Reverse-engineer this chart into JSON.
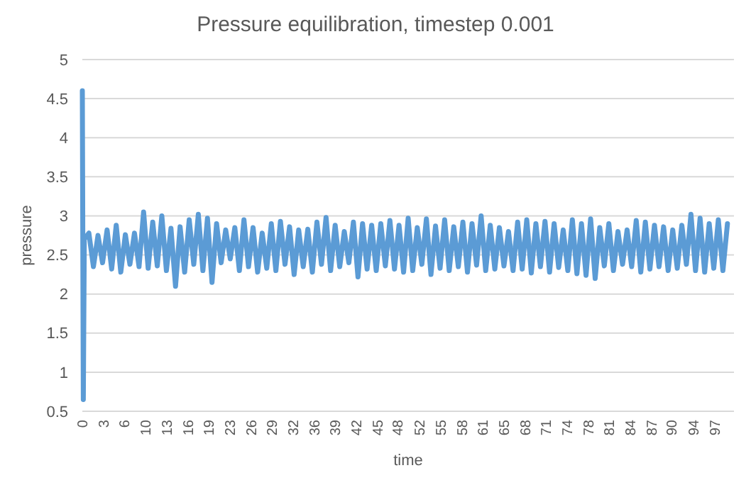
{
  "chart_data": {
    "type": "line",
    "title": "Pressure equilibration, timestep 0.001",
    "xlabel": "time",
    "ylabel": "pressure",
    "x": [
      0,
      0.15,
      0.3,
      1,
      1.7,
      2.4,
      3.1,
      3.8,
      4.5,
      5.2,
      5.9,
      6.6,
      7.3,
      8,
      8.7,
      9.4,
      10.1,
      10.8,
      11.5,
      12.2,
      12.9,
      13.6,
      14.3,
      15,
      15.7,
      16.4,
      17.1,
      17.8,
      18.5,
      19.2,
      19.9,
      20.6,
      21.3,
      22,
      22.7,
      23.4,
      24.1,
      24.8,
      25.5,
      26.2,
      26.9,
      27.6,
      28.3,
      29,
      29.7,
      30.4,
      31.1,
      31.8,
      32.5,
      33.2,
      33.9,
      34.6,
      35.3,
      36,
      36.7,
      37.4,
      38.1,
      38.8,
      39.5,
      40.2,
      40.9,
      41.6,
      42.3,
      43,
      43.7,
      44.4,
      45.1,
      45.8,
      46.5,
      47.2,
      47.9,
      48.6,
      49.3,
      50,
      50.7,
      51.4,
      52.1,
      52.8,
      53.5,
      54.2,
      54.9,
      55.6,
      56.3,
      57,
      57.7,
      58.4,
      59.1,
      59.8,
      60.5,
      61.2,
      61.9,
      62.6,
      63.3,
      64,
      64.7,
      65.4,
      66.1,
      66.8,
      67.5,
      68.2,
      68.9,
      69.6,
      70.3,
      71,
      71.7,
      72.4,
      73.1,
      73.8,
      74.5,
      75.2,
      75.9,
      76.6,
      77.3,
      78,
      78.7,
      79.4,
      80.1,
      80.8,
      81.5,
      82.2,
      82.9,
      83.6,
      84.3,
      85,
      85.7,
      86.4,
      87.1,
      87.8,
      88.5,
      89.2,
      89.9,
      90.6,
      91.3,
      92,
      92.7,
      93.4,
      94.1,
      94.8,
      95.5,
      96.2,
      96.9,
      97.6,
      98.3,
      99
    ],
    "series": [
      {
        "color": "#5b9bd5",
        "values": [
          4.6,
          0.65,
          2.7,
          2.78,
          2.35,
          2.75,
          2.4,
          2.82,
          2.32,
          2.88,
          2.28,
          2.76,
          2.38,
          2.78,
          2.35,
          3.05,
          2.33,
          2.92,
          2.36,
          3.0,
          2.3,
          2.84,
          2.1,
          2.86,
          2.28,
          2.95,
          2.38,
          3.02,
          2.3,
          2.97,
          2.15,
          2.9,
          2.4,
          2.82,
          2.45,
          2.85,
          2.3,
          2.95,
          2.35,
          2.85,
          2.28,
          2.78,
          2.33,
          2.9,
          2.3,
          2.93,
          2.38,
          2.86,
          2.25,
          2.82,
          2.35,
          2.83,
          2.28,
          2.92,
          2.38,
          2.98,
          2.3,
          2.88,
          2.35,
          2.8,
          2.4,
          2.92,
          2.22,
          2.9,
          2.32,
          2.88,
          2.3,
          2.9,
          2.36,
          2.94,
          2.32,
          2.88,
          2.28,
          2.97,
          2.3,
          2.85,
          2.38,
          2.96,
          2.25,
          2.87,
          2.33,
          2.95,
          2.3,
          2.86,
          2.35,
          2.92,
          2.28,
          2.9,
          2.37,
          3.0,
          2.3,
          2.88,
          2.32,
          2.85,
          2.36,
          2.8,
          2.3,
          2.92,
          2.32,
          2.95,
          2.27,
          2.9,
          2.35,
          2.93,
          2.28,
          2.9,
          2.34,
          2.82,
          2.3,
          2.95,
          2.26,
          2.9,
          2.24,
          2.96,
          2.2,
          2.85,
          2.36,
          2.9,
          2.3,
          2.8,
          2.38,
          2.82,
          2.35,
          2.94,
          2.28,
          2.92,
          2.32,
          2.88,
          2.35,
          2.86,
          2.3,
          2.82,
          2.33,
          2.88,
          2.38,
          3.02,
          2.3,
          2.97,
          2.28,
          2.9,
          2.33,
          2.95,
          2.3,
          2.9
        ]
      }
    ],
    "xlim": [
      0,
      100
    ],
    "xticks": [
      0,
      {
        "value": 3.24,
        "label": "3"
      },
      {
        "value": 6.47,
        "label": "6"
      },
      {
        "value": 9.71,
        "label": "10"
      },
      {
        "value": 12.94,
        "label": "13"
      },
      {
        "value": 16.18,
        "label": "16"
      },
      {
        "value": 19.41,
        "label": "19"
      },
      {
        "value": 22.65,
        "label": "23"
      },
      {
        "value": 25.88,
        "label": "26"
      },
      {
        "value": 29.12,
        "label": "29"
      },
      {
        "value": 32.35,
        "label": "32"
      },
      {
        "value": 35.59,
        "label": "36"
      },
      {
        "value": 38.82,
        "label": "39"
      },
      {
        "value": 42.06,
        "label": "42"
      },
      {
        "value": 45.29,
        "label": "45"
      },
      {
        "value": 48.4,
        "label": "48"
      },
      {
        "value": 51.76,
        "label": "52"
      },
      55,
      {
        "value": 58.23,
        "label": "58"
      },
      {
        "value": 61.47,
        "label": "61"
      },
      {
        "value": 64.7,
        "label": "65"
      },
      {
        "value": 67.94,
        "label": "68"
      },
      {
        "value": 71.17,
        "label": "71"
      },
      {
        "value": 74.41,
        "label": "74"
      },
      {
        "value": 77.64,
        "label": "78"
      },
      {
        "value": 80.88,
        "label": "81"
      },
      {
        "value": 84.11,
        "label": "84"
      },
      {
        "value": 87.35,
        "label": "87"
      },
      {
        "value": 90.4,
        "label": "90"
      },
      {
        "value": 93.82,
        "label": "94"
      },
      {
        "value": 97.05,
        "label": "97"
      }
    ],
    "ylim": [
      0.5,
      5
    ],
    "yticks": [
      0.5,
      1,
      1.5,
      2,
      2.5,
      3,
      3.5,
      4,
      4.5,
      5
    ],
    "grid": "y",
    "marker": "none",
    "line_style": "solid"
  }
}
